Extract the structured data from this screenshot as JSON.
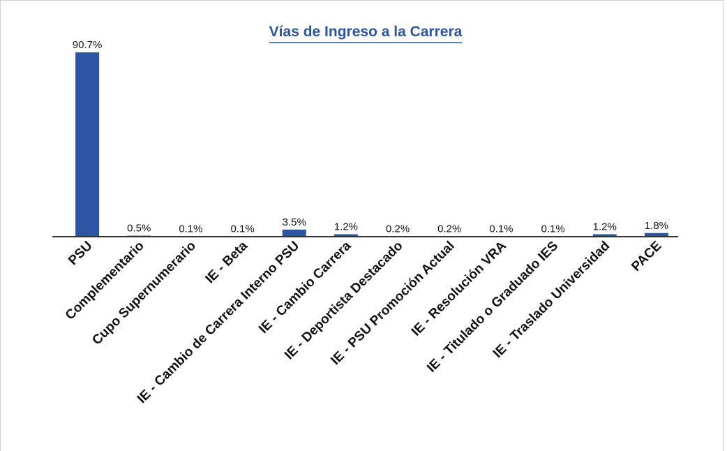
{
  "chart_data": {
    "type": "bar",
    "title": "Vías de Ingreso a la Carrera",
    "categories": [
      "PSU",
      "Complementario",
      "Cupo Supernumerario",
      "IE - Beta",
      "IE - Cambio de Carrera Interno PSU",
      "IE - Cambio Carrera",
      "IE - Deportista Destacado",
      "IE - PSU Promoción Actual",
      "IE - Resolución VRA",
      "IE - Titulado o Graduado IES",
      "IE - Traslado Universidad",
      "PACE"
    ],
    "values": [
      90.7,
      0.5,
      0.1,
      0.1,
      3.5,
      1.2,
      0.2,
      0.2,
      0.1,
      0.1,
      1.2,
      1.8
    ],
    "value_labels": [
      "90.7%",
      "0.5%",
      "0.1%",
      "0.1%",
      "3.5%",
      "1.2%",
      "0.2%",
      "0.2%",
      "0.1%",
      "0.1%",
      "1.2%",
      "1.8%"
    ],
    "color": "#2e55a5"
  }
}
